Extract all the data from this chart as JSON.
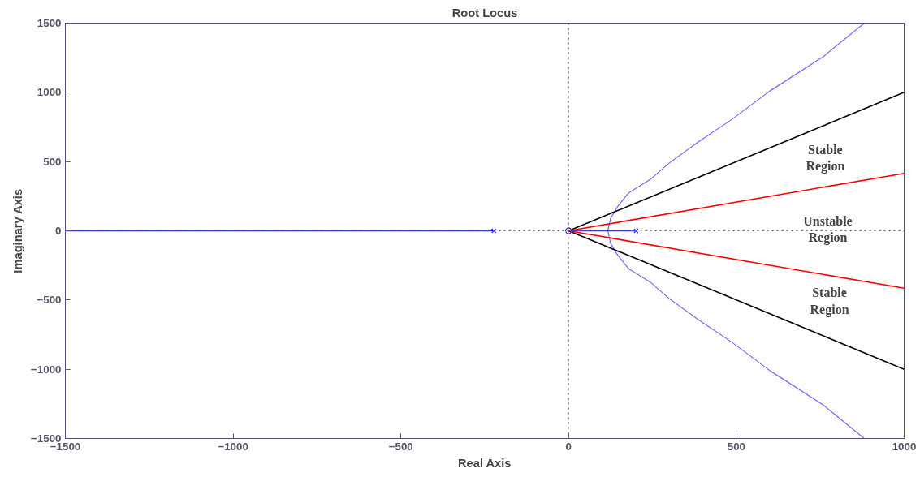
{
  "chart_data": {
    "type": "line",
    "title": "Root Locus",
    "xlabel": "Real Axis",
    "ylabel": "Imaginary Axis",
    "xlim": [
      -1500,
      1000
    ],
    "ylim": [
      -1500,
      1500
    ],
    "xticks": [
      -1500,
      -1000,
      -500,
      0,
      500,
      1000
    ],
    "yticks": [
      -1500,
      -1000,
      -500,
      0,
      500,
      1000,
      1500
    ],
    "grid": false,
    "series": [
      {
        "color": "#6b6bff",
        "x": [
          881,
          760,
          600,
          485,
          388,
          300,
          243,
          178,
          146,
          125,
          117,
          125,
          146,
          178,
          243,
          300,
          388,
          485,
          600,
          760,
          881
        ],
        "values": [
          -1500,
          -1260,
          -1010,
          -802,
          -645,
          -490,
          -370,
          -272,
          -175,
          -90,
          0,
          90,
          175,
          272,
          370,
          490,
          645,
          802,
          1010,
          1260,
          1500
        ]
      },
      {
        "color": "#3333ff",
        "x": [
          -1500,
          -223
        ],
        "values": [
          0,
          0
        ]
      },
      {
        "color": "#3333ff",
        "x": [
          0,
          201
        ],
        "values": [
          0,
          0
        ]
      },
      {
        "color": "#000000",
        "x": [
          1000,
          0,
          1000
        ],
        "values": [
          1000,
          0,
          -1000
        ]
      },
      {
        "color": "#ff0000",
        "x": [
          1000,
          0,
          1000
        ],
        "values": [
          415,
          0,
          -415
        ]
      },
      {
        "type": "scatter",
        "marker": "cross",
        "color": "#3333ff",
        "x": [
          -223,
          201
        ],
        "values": [
          0,
          0
        ]
      },
      {
        "type": "scatter",
        "marker": "circle",
        "color": "#3333ff",
        "x": [
          0
        ],
        "values": [
          0
        ]
      }
    ],
    "ref_lines": [
      {
        "axis": "x",
        "value": 0,
        "color": "#77778f",
        "line_style": "dotted"
      },
      {
        "axis": "y",
        "value": 0,
        "color": "#555577",
        "line_style": "dotted"
      }
    ],
    "annotations": [
      "Stable\nRegion",
      "Unstable\nRegion",
      "Stable\nRegion"
    ]
  }
}
